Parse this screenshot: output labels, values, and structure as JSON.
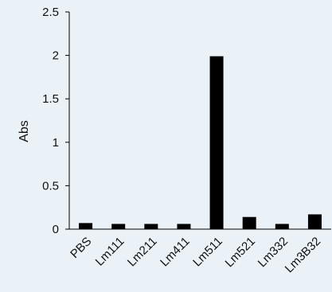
{
  "chart_data": {
    "type": "bar",
    "title": "",
    "xlabel": "",
    "ylabel": "Abs",
    "ylim": [
      0,
      2.5
    ],
    "yticks": [
      "0",
      "0.5",
      "1",
      "1.5",
      "2",
      "2.5"
    ],
    "categories": [
      "PBS",
      "Lm111",
      "Lm211",
      "Lm411",
      "Lm511",
      "Lm521",
      "Lm332",
      "Lm3B32"
    ],
    "values": [
      0.07,
      0.06,
      0.06,
      0.06,
      1.99,
      0.14,
      0.06,
      0.17
    ],
    "grid": false,
    "legend": "none",
    "colors": {
      "background": "#eaf2f8",
      "bar": "#000000",
      "axis": "#000000",
      "text": "#111111"
    }
  }
}
